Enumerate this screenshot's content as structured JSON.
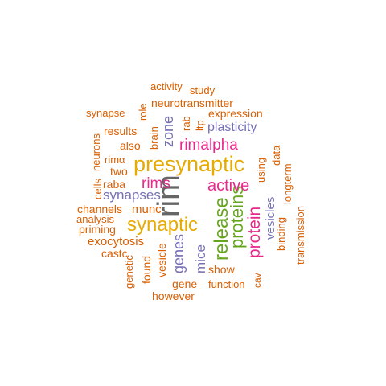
{
  "colors": {
    "orange": "#d95f02",
    "gold": "#e6ab02",
    "purple": "#7570b3",
    "magenta": "#e7298a",
    "green": "#66a61e",
    "gray": "#666666"
  },
  "words": [
    {
      "text": "rim",
      "color": "gray"
    },
    {
      "text": "presynaptic",
      "color": "gold"
    },
    {
      "text": "synaptic",
      "color": "gold"
    },
    {
      "text": "release",
      "color": "green"
    },
    {
      "text": "proteins",
      "color": "green"
    },
    {
      "text": "protein",
      "color": "magenta"
    },
    {
      "text": "active",
      "color": "magenta"
    },
    {
      "text": "rimalpha",
      "color": "magenta"
    },
    {
      "text": "rims",
      "color": "magenta"
    },
    {
      "text": "synapses",
      "color": "purple"
    },
    {
      "text": "zone",
      "color": "purple"
    },
    {
      "text": "plasticity",
      "color": "purple"
    },
    {
      "text": "genes",
      "color": "purple"
    },
    {
      "text": "mice",
      "color": "purple"
    },
    {
      "text": "vesicles",
      "color": "purple"
    },
    {
      "text": "activity",
      "color": "orange"
    },
    {
      "text": "study",
      "color": "orange"
    },
    {
      "text": "neurotransmitter",
      "color": "orange"
    },
    {
      "text": "synapse",
      "color": "orange"
    },
    {
      "text": "role",
      "color": "orange"
    },
    {
      "text": "expression",
      "color": "orange"
    },
    {
      "text": "results",
      "color": "orange"
    },
    {
      "text": "brain",
      "color": "orange"
    },
    {
      "text": "rab",
      "color": "orange"
    },
    {
      "text": "ltp",
      "color": "orange"
    },
    {
      "text": "neurons",
      "color": "orange"
    },
    {
      "text": "also",
      "color": "orange"
    },
    {
      "text": "data",
      "color": "orange"
    },
    {
      "text": "rimα",
      "color": "orange"
    },
    {
      "text": "using",
      "color": "orange"
    },
    {
      "text": "two",
      "color": "orange"
    },
    {
      "text": "cells",
      "color": "orange"
    },
    {
      "text": "raba",
      "color": "orange"
    },
    {
      "text": "longterm",
      "color": "orange"
    },
    {
      "text": "channels",
      "color": "orange"
    },
    {
      "text": "munc",
      "color": "orange"
    },
    {
      "text": "analysis",
      "color": "orange"
    },
    {
      "text": "binding",
      "color": "orange"
    },
    {
      "text": "transmission",
      "color": "orange"
    },
    {
      "text": "priming",
      "color": "orange"
    },
    {
      "text": "exocytosis",
      "color": "orange"
    },
    {
      "text": "castc",
      "color": "orange"
    },
    {
      "text": "found",
      "color": "orange"
    },
    {
      "text": "vesicle",
      "color": "orange"
    },
    {
      "text": "show",
      "color": "orange"
    },
    {
      "text": "genetic",
      "color": "orange"
    },
    {
      "text": "gene",
      "color": "orange"
    },
    {
      "text": "function",
      "color": "orange"
    },
    {
      "text": "cav",
      "color": "orange"
    },
    {
      "text": "however",
      "color": "orange"
    }
  ]
}
